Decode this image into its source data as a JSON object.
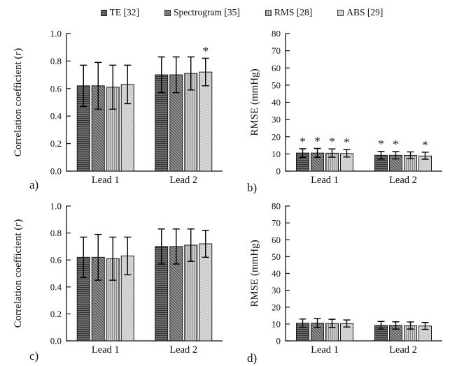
{
  "colors": {
    "axis": "#111111",
    "bar_border": "#1a1a1a",
    "error_bar": "#000000",
    "text": "#111111",
    "background": "#ffffff"
  },
  "legend": {
    "items": [
      {
        "label": "TE [32]",
        "pattern": "horizontal",
        "fill": "#6b6b6b",
        "line": "#333333"
      },
      {
        "label": "Spectrogram [35]",
        "pattern": "diag-down",
        "fill": "#9a9a9a",
        "line": "#404040"
      },
      {
        "label": "RMS [28]",
        "pattern": "vertical",
        "fill": "#cbcbcb",
        "line": "#848484"
      },
      {
        "label": "ABS [29]",
        "pattern": "diag-up",
        "fill": "#e3e3e3",
        "line": "#b2b2b2"
      }
    ]
  },
  "chart_data": [
    {
      "panel": "a)",
      "type": "bar",
      "title": "",
      "ylabel": "Correlation coefficient (r)",
      "xlabel": "",
      "ylim": [
        0.0,
        1.0
      ],
      "yticks": [
        0.0,
        0.2,
        0.4,
        0.6,
        0.8,
        1.0
      ],
      "ytick_labels": [
        "0.0",
        "0.2",
        "0.4",
        "0.6",
        "0.8",
        "1.0"
      ],
      "categories": [
        "Lead 1",
        "Lead 2"
      ],
      "grid": false,
      "legend_position": "top",
      "sig_marker": "*",
      "series": [
        {
          "name": "TE [32]",
          "values": [
            0.62,
            0.7
          ],
          "err_low": [
            0.47,
            0.57
          ],
          "err_high": [
            0.77,
            0.83
          ],
          "sig": [
            false,
            false
          ]
        },
        {
          "name": "Spectrogram [35]",
          "values": [
            0.62,
            0.7
          ],
          "err_low": [
            0.45,
            0.57
          ],
          "err_high": [
            0.79,
            0.83
          ],
          "sig": [
            false,
            false
          ]
        },
        {
          "name": "RMS [28]",
          "values": [
            0.61,
            0.71
          ],
          "err_low": [
            0.45,
            0.59
          ],
          "err_high": [
            0.77,
            0.83
          ],
          "sig": [
            false,
            false
          ]
        },
        {
          "name": "ABS [29]",
          "values": [
            0.63,
            0.72
          ],
          "err_low": [
            0.49,
            0.62
          ],
          "err_high": [
            0.77,
            0.82
          ],
          "sig": [
            false,
            true
          ]
        }
      ]
    },
    {
      "panel": "b)",
      "type": "bar",
      "title": "",
      "ylabel": "RMSE (mmHg)",
      "xlabel": "",
      "ylim": [
        0,
        80
      ],
      "yticks": [
        0,
        10,
        20,
        30,
        40,
        50,
        60,
        70,
        80
      ],
      "ytick_labels": [
        "0",
        "10",
        "20",
        "30",
        "40",
        "50",
        "60",
        "70",
        "80"
      ],
      "categories": [
        "Lead 1",
        "Lead 2"
      ],
      "grid": false,
      "legend_position": "top",
      "sig_marker": "*",
      "series": [
        {
          "name": "TE [32]",
          "values": [
            10.5,
            9.2
          ],
          "err_low": [
            8.0,
            7.0
          ],
          "err_high": [
            13.0,
            11.5
          ],
          "sig": [
            true,
            true
          ]
        },
        {
          "name": "Spectrogram [35]",
          "values": [
            10.5,
            9.2
          ],
          "err_low": [
            8.0,
            7.1
          ],
          "err_high": [
            13.2,
            11.4
          ],
          "sig": [
            true,
            true
          ]
        },
        {
          "name": "RMS [28]",
          "values": [
            10.4,
            9.1
          ],
          "err_low": [
            8.1,
            7.2
          ],
          "err_high": [
            12.9,
            11.2
          ],
          "sig": [
            true,
            false
          ]
        },
        {
          "name": "ABS [29]",
          "values": [
            10.2,
            8.8
          ],
          "err_low": [
            8.2,
            6.9
          ],
          "err_high": [
            12.5,
            11.0
          ],
          "sig": [
            true,
            true
          ]
        }
      ]
    },
    {
      "panel": "c)",
      "type": "bar",
      "title": "",
      "ylabel": "Correlation coefficient (r)",
      "xlabel": "",
      "ylim": [
        0.0,
        1.0
      ],
      "yticks": [
        0.0,
        0.2,
        0.4,
        0.6,
        0.8,
        1.0
      ],
      "ytick_labels": [
        "0.0",
        "0.2",
        "0.4",
        "0.6",
        "0.8",
        "1.0"
      ],
      "categories": [
        "Lead 1",
        "Lead 2"
      ],
      "grid": false,
      "legend_position": "top",
      "sig_marker": "*",
      "series": [
        {
          "name": "TE [32]",
          "values": [
            0.62,
            0.7
          ],
          "err_low": [
            0.47,
            0.57
          ],
          "err_high": [
            0.77,
            0.83
          ],
          "sig": [
            false,
            false
          ]
        },
        {
          "name": "Spectrogram [35]",
          "values": [
            0.62,
            0.7
          ],
          "err_low": [
            0.45,
            0.57
          ],
          "err_high": [
            0.79,
            0.83
          ],
          "sig": [
            false,
            false
          ]
        },
        {
          "name": "RMS [28]",
          "values": [
            0.61,
            0.71
          ],
          "err_low": [
            0.45,
            0.59
          ],
          "err_high": [
            0.77,
            0.83
          ],
          "sig": [
            false,
            false
          ]
        },
        {
          "name": "ABS [29]",
          "values": [
            0.63,
            0.72
          ],
          "err_low": [
            0.49,
            0.62
          ],
          "err_high": [
            0.77,
            0.82
          ],
          "sig": [
            false,
            false
          ]
        }
      ]
    },
    {
      "panel": "d)",
      "type": "bar",
      "title": "",
      "ylabel": "RMSE (mmHg)",
      "xlabel": "",
      "ylim": [
        0,
        80
      ],
      "yticks": [
        0,
        10,
        20,
        30,
        40,
        50,
        60,
        70,
        80
      ],
      "ytick_labels": [
        "0",
        "10",
        "20",
        "30",
        "40",
        "50",
        "60",
        "70",
        "80"
      ],
      "categories": [
        "Lead 1",
        "Lead 2"
      ],
      "grid": false,
      "legend_position": "top",
      "sig_marker": "*",
      "series": [
        {
          "name": "TE [32]",
          "values": [
            10.5,
            9.2
          ],
          "err_low": [
            8.0,
            7.0
          ],
          "err_high": [
            13.0,
            11.5
          ],
          "sig": [
            false,
            false
          ]
        },
        {
          "name": "Spectrogram [35]",
          "values": [
            10.5,
            9.2
          ],
          "err_low": [
            8.0,
            7.0
          ],
          "err_high": [
            13.3,
            11.3
          ],
          "sig": [
            false,
            false
          ]
        },
        {
          "name": "RMS [28]",
          "values": [
            10.3,
            9.0
          ],
          "err_low": [
            8.0,
            7.0
          ],
          "err_high": [
            12.8,
            11.2
          ],
          "sig": [
            false,
            false
          ]
        },
        {
          "name": "ABS [29]",
          "values": [
            10.2,
            8.8
          ],
          "err_low": [
            8.2,
            6.8
          ],
          "err_high": [
            12.4,
            10.9
          ],
          "sig": [
            false,
            false
          ]
        }
      ]
    }
  ]
}
